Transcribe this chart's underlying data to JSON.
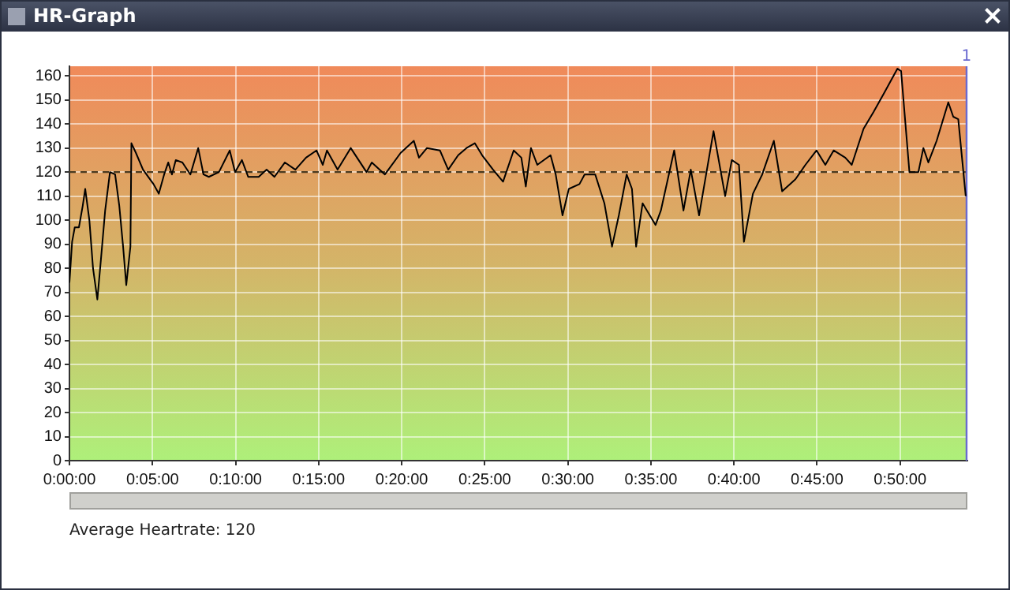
{
  "chart_data": {
    "type": "line",
    "title": "HR-Graph",
    "x": [
      0,
      0.16,
      0.32,
      0.57,
      0.8,
      0.95,
      1.2,
      1.42,
      1.68,
      1.9,
      2.15,
      2.44,
      2.75,
      3.0,
      3.23,
      3.42,
      3.67,
      3.73,
      4.0,
      4.43,
      5.06,
      5.38,
      5.7,
      5.95,
      6.17,
      6.4,
      6.8,
      7.28,
      7.75,
      8.07,
      8.39,
      9.0,
      9.65,
      9.97,
      10.38,
      10.76,
      11.39,
      11.87,
      12.34,
      12.97,
      13.6,
      14.24,
      14.87,
      15.25,
      15.5,
      16.14,
      16.93,
      17.88,
      18.2,
      18.99,
      19.94,
      20.73,
      21.04,
      21.52,
      22.3,
      22.8,
      23.4,
      23.9,
      24.4,
      24.84,
      25.5,
      26.1,
      26.74,
      27.2,
      27.47,
      27.78,
      28.16,
      28.96,
      29.27,
      29.68,
      30.06,
      30.7,
      31.01,
      31.65,
      32.2,
      32.66,
      33.07,
      33.54,
      33.86,
      34.11,
      34.5,
      35.28,
      35.6,
      36.4,
      36.96,
      37.4,
      37.9,
      38.77,
      39.47,
      39.87,
      40.3,
      40.6,
      41.14,
      41.7,
      42.4,
      42.9,
      43.7,
      44.3,
      44.97,
      45.5,
      46.0,
      46.7,
      47.09,
      47.8,
      48.4,
      49.05,
      49.84,
      50.06,
      50.56,
      51.1,
      51.4,
      51.7,
      52.2,
      52.9,
      53.2,
      53.5,
      53.95
    ],
    "series": [
      {
        "color": "#000000",
        "values": [
          74,
          91,
          97,
          97,
          106,
          113,
          100,
          80,
          67,
          84,
          104,
          120,
          119,
          106,
          89,
          73,
          89,
          132,
          128,
          121,
          115,
          111,
          119,
          124,
          119,
          125,
          124,
          119,
          130,
          119,
          118,
          120,
          129,
          120,
          125,
          118,
          118,
          121,
          118,
          124,
          121,
          126,
          129,
          123,
          129,
          121,
          130,
          120,
          124,
          119,
          128,
          133,
          126,
          130,
          129,
          121,
          127,
          130,
          132,
          127,
          121,
          116,
          129,
          126,
          114,
          130,
          123,
          127,
          119,
          102,
          113,
          115,
          119,
          119,
          107,
          89,
          102,
          119,
          113,
          89,
          107,
          98,
          104,
          129,
          104,
          121,
          102,
          137,
          110,
          125,
          123,
          91,
          111,
          119,
          133,
          112,
          117,
          123,
          129,
          123,
          129,
          126,
          123,
          138,
          145,
          153,
          163,
          162,
          120,
          120,
          130,
          124,
          133,
          149,
          143,
          142,
          110
        ]
      }
    ],
    "xlim": [
      0,
      54.05
    ],
    "ylim": [
      0,
      164
    ],
    "xticks": [
      {
        "value": 0,
        "label": "0:00:00"
      },
      {
        "value": 5,
        "label": "0:05:00"
      },
      {
        "value": 10,
        "label": "0:10:00"
      },
      {
        "value": 15,
        "label": "0:15:00"
      },
      {
        "value": 20,
        "label": "0:20:00"
      },
      {
        "value": 25,
        "label": "0:25:00"
      },
      {
        "value": 30,
        "label": "0:30:00"
      },
      {
        "value": 35,
        "label": "0:35:00"
      },
      {
        "value": 40,
        "label": "0:40:00"
      },
      {
        "value": 45,
        "label": "0:45:00"
      },
      {
        "value": 50,
        "label": "0:50:00"
      }
    ],
    "yticks": [
      0,
      10,
      20,
      30,
      40,
      50,
      60,
      70,
      80,
      90,
      100,
      110,
      120,
      130,
      140,
      150,
      160
    ],
    "grid": true,
    "legend": false,
    "marker": "none",
    "line_style": "solid",
    "ref_lines": [
      {
        "axis": "y",
        "value": 120,
        "color": "#4a3a20",
        "line_style": "dashed"
      },
      {
        "axis": "x",
        "value": 54,
        "color": "#6a6ad0",
        "line_style": "solid"
      }
    ],
    "annotations": [
      "Average Heartrate: 120",
      {
        "text": "1",
        "x": 54,
        "y": 164
      }
    ]
  }
}
